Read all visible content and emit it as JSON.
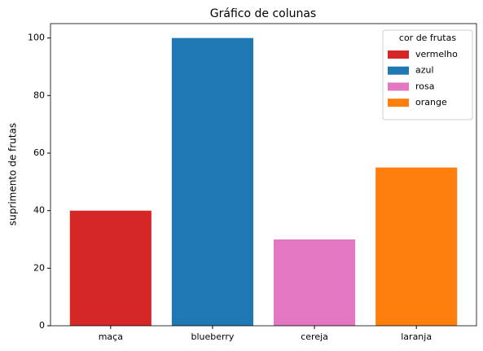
{
  "chart_data": {
    "type": "bar",
    "title": "Gráfico de colunas",
    "ylabel": "suprimento de frutas",
    "categories": [
      "maça",
      "blueberry",
      "cereja",
      "laranja"
    ],
    "values": [
      40,
      100,
      30,
      55
    ],
    "colors": [
      "#d62728",
      "#1f77b4",
      "#e377c2",
      "#ff7f0e"
    ],
    "ylim": [
      0,
      105
    ],
    "yticks": [
      0,
      20,
      40,
      60,
      80,
      100
    ],
    "legend": {
      "title": "cor de frutas",
      "position": "upper right",
      "entries": [
        {
          "name": "vermelho",
          "color": "#d62728"
        },
        {
          "name": "azul",
          "color": "#1f77b4"
        },
        {
          "name": "rosa",
          "color": "#e377c2"
        },
        {
          "name": "orange",
          "color": "#ff7f0e"
        }
      ]
    }
  }
}
